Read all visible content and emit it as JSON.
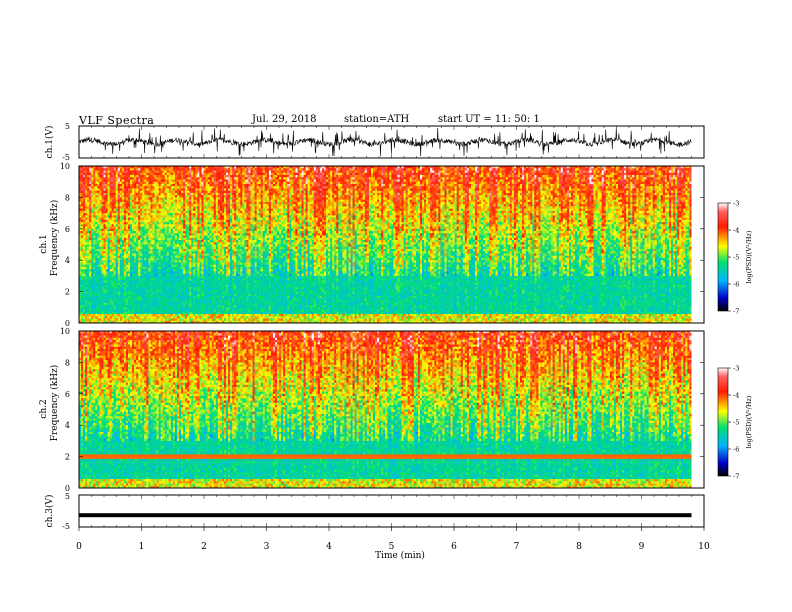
{
  "header": {
    "title": "VLF Spectra",
    "date": "Jul. 29, 2018",
    "station": "station=ATH",
    "start_ut": "start UT = 11: 50: 1"
  },
  "chart_data": [
    {
      "type": "line",
      "ylabel": "ch.1(V)",
      "ylim": [
        -5,
        5
      ],
      "yticks": [
        "5",
        "-5"
      ],
      "xlim": [
        0,
        10
      ]
    },
    {
      "type": "heatmap",
      "ylabel_channel": "ch.1",
      "ylabel": "Frequency (kHz)",
      "ylim": [
        0,
        10
      ],
      "yticks": [
        "10",
        "8",
        "6",
        "4",
        "2",
        "0"
      ],
      "xlim": [
        0,
        10
      ],
      "colorbar": {
        "label": "log(PSD)(V²/Hz)",
        "range": [
          -7,
          -3
        ],
        "ticks": [
          "-3",
          "-4",
          "-5",
          "-6",
          "-7"
        ]
      }
    },
    {
      "type": "heatmap",
      "ylabel_channel": "ch.2",
      "ylabel": "Frequency (kHz)",
      "ylim": [
        0,
        10
      ],
      "yticks": [
        "10",
        "8",
        "6",
        "4",
        "2",
        "0"
      ],
      "xlim": [
        0,
        10
      ],
      "colorbar": {
        "label": "log(PSD)(V²/Hz)",
        "range": [
          -7,
          -3
        ],
        "ticks": [
          "-3",
          "-4",
          "-5",
          "-6",
          "-7"
        ]
      }
    },
    {
      "type": "line",
      "ylabel": "ch.3(V)",
      "ylim": [
        -5,
        5
      ],
      "yticks": [
        "5",
        "-5"
      ],
      "xlim": [
        0,
        10
      ],
      "xlabel": "Time (min)",
      "xticks": [
        "0",
        "1",
        "2",
        "3",
        "4",
        "5",
        "6",
        "7",
        "8",
        "9",
        "10"
      ]
    }
  ]
}
